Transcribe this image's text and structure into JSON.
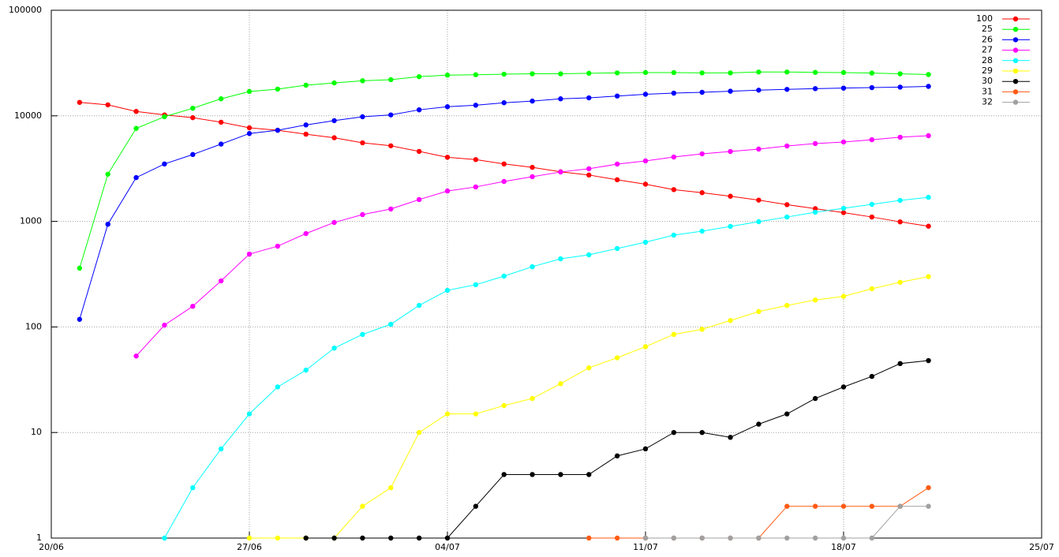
{
  "chart_data": {
    "type": "line",
    "log_scale_y": true,
    "grid": true,
    "legend_position": "top-right",
    "x": [
      "21/06",
      "22/06",
      "23/06",
      "24/06",
      "25/06",
      "26/06",
      "27/06",
      "28/06",
      "29/06",
      "30/06",
      "01/07",
      "02/07",
      "03/07",
      "04/07",
      "05/07",
      "06/07",
      "07/07",
      "08/07",
      "09/07",
      "10/07",
      "11/07",
      "12/07",
      "13/07",
      "14/07",
      "15/07",
      "16/07",
      "17/07",
      "18/07",
      "19/07",
      "20/07",
      "21/07"
    ],
    "xlim": [
      "20/06",
      "25/07"
    ],
    "xticks": [
      "20/06",
      "27/06",
      "04/07",
      "11/07",
      "18/07",
      "25/07"
    ],
    "ylim": [
      1,
      100000
    ],
    "yticks": [
      1,
      10,
      100,
      1000,
      10000,
      100000
    ],
    "series": [
      {
        "name": "100",
        "color": "#ff0000",
        "values": [
          13400,
          12700,
          11000,
          10200,
          9600,
          8700,
          7700,
          7300,
          6700,
          6200,
          5550,
          5200,
          4600,
          4050,
          3850,
          3500,
          3250,
          2950,
          2750,
          2480,
          2250,
          2000,
          1870,
          1730,
          1590,
          1440,
          1320,
          1210,
          1100,
          990,
          900
        ]
      },
      {
        "name": "25",
        "color": "#00ff00",
        "values": [
          360,
          2800,
          7600,
          9800,
          11800,
          14500,
          17000,
          17900,
          19500,
          20500,
          21500,
          22000,
          23500,
          24300,
          24500,
          24800,
          25000,
          25000,
          25300,
          25500,
          25700,
          25700,
          25500,
          25500,
          26000,
          26000,
          25800,
          25700,
          25400,
          25000,
          24600
        ]
      },
      {
        "name": "26",
        "color": "#0000ff",
        "values": [
          118,
          940,
          2600,
          3500,
          4300,
          5400,
          6800,
          7300,
          8200,
          9000,
          9800,
          10200,
          11400,
          12200,
          12600,
          13300,
          13800,
          14500,
          14800,
          15400,
          16000,
          16400,
          16700,
          17100,
          17500,
          17800,
          18100,
          18300,
          18500,
          18700,
          19000
        ]
      },
      {
        "name": "27",
        "color": "#ff00ff",
        "values": [
          null,
          null,
          53,
          104,
          157,
          273,
          490,
          582,
          767,
          977,
          1160,
          1310,
          1610,
          1940,
          2120,
          2390,
          2650,
          2940,
          3150,
          3490,
          3740,
          4070,
          4360,
          4590,
          4840,
          5180,
          5460,
          5650,
          5940,
          6270,
          6480
        ]
      },
      {
        "name": "28",
        "color": "#00ffff",
        "values": [
          null,
          null,
          null,
          1,
          3,
          7,
          15,
          27,
          39,
          63,
          85,
          106,
          160,
          222,
          251,
          303,
          372,
          442,
          482,
          553,
          635,
          741,
          808,
          896,
          993,
          1100,
          1220,
          1330,
          1450,
          1580,
          1690
        ]
      },
      {
        "name": "29",
        "color": "#ffff00",
        "values": [
          null,
          null,
          null,
          null,
          null,
          null,
          1,
          1,
          1,
          1,
          2,
          3,
          10,
          15,
          15,
          18,
          21,
          29,
          41,
          51,
          65,
          85,
          95,
          115,
          140,
          160,
          180,
          195,
          230,
          265,
          300
        ]
      },
      {
        "name": "30",
        "color": "#000000",
        "values": [
          null,
          null,
          null,
          null,
          null,
          null,
          null,
          null,
          1,
          1,
          1,
          1,
          1,
          1,
          2,
          4,
          4,
          4,
          4,
          6,
          7,
          10,
          10,
          9,
          12,
          15,
          21,
          27,
          34,
          45,
          48
        ]
      },
      {
        "name": "31",
        "color": "#ff5a14",
        "values": [
          null,
          null,
          null,
          null,
          null,
          null,
          null,
          null,
          null,
          null,
          null,
          null,
          null,
          null,
          null,
          null,
          null,
          null,
          1,
          1,
          1,
          1,
          1,
          1,
          1,
          2,
          2,
          2,
          2,
          2,
          3
        ]
      },
      {
        "name": "32",
        "color": "#a0a0a0",
        "values": [
          null,
          null,
          null,
          null,
          null,
          null,
          null,
          null,
          null,
          null,
          null,
          null,
          null,
          null,
          null,
          null,
          null,
          null,
          null,
          null,
          1,
          1,
          1,
          1,
          1,
          1,
          1,
          1,
          1,
          2,
          2
        ]
      }
    ]
  }
}
